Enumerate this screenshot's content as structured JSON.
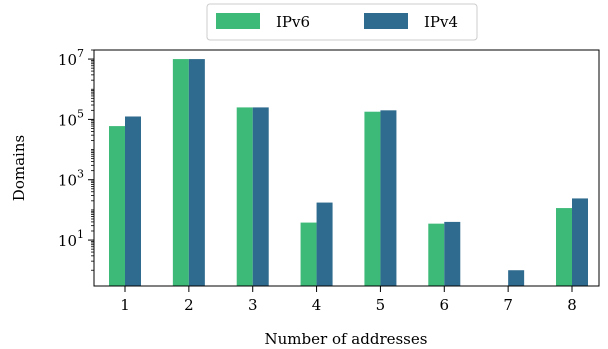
{
  "chart_data": {
    "type": "bar",
    "categories": [
      "1",
      "2",
      "3",
      "4",
      "5",
      "6",
      "7",
      "8"
    ],
    "series": [
      {
        "name": "IPv6",
        "color": "#3dba78",
        "values": [
          60000,
          10000000,
          250000,
          38,
          180000,
          35,
          null,
          115
        ]
      },
      {
        "name": "IPv4",
        "color": "#2f6b8e",
        "values": [
          125000,
          10000000,
          250000,
          175,
          200000,
          40,
          1,
          240
        ]
      }
    ],
    "xlabel": "Number of addresses",
    "ylabel": "Domains",
    "yscale": "log",
    "ylim": [
      0.3,
      20000000
    ],
    "yticks": [
      {
        "value": 10,
        "base": "10",
        "exp": "1"
      },
      {
        "value": 1000,
        "base": "10",
        "exp": "3"
      },
      {
        "value": 100000,
        "base": "10",
        "exp": "5"
      },
      {
        "value": 10000000,
        "base": "10",
        "exp": "7"
      }
    ],
    "grid": false,
    "legend_position": "top-center"
  }
}
